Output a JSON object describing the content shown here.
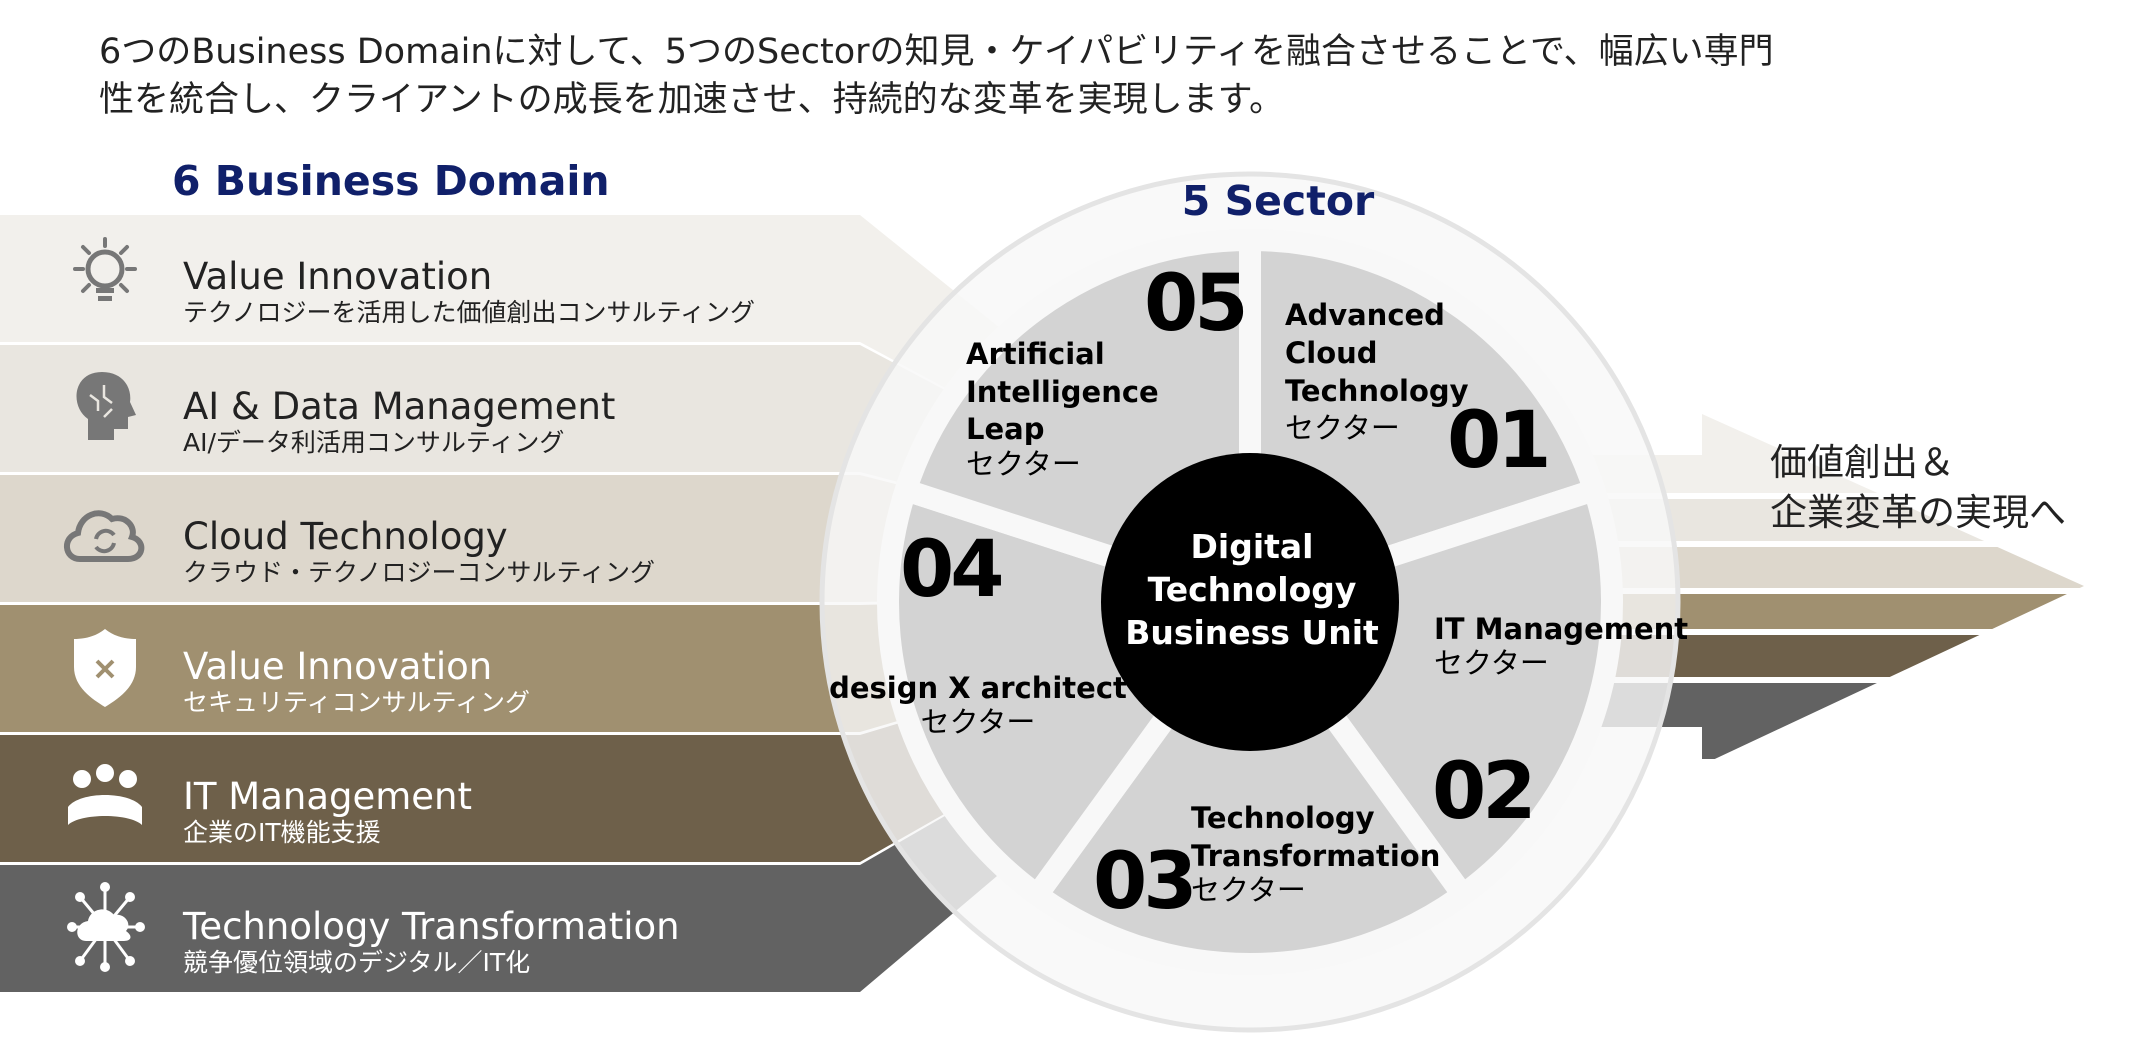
{
  "header": {
    "line1": "6つのBusiness Domainに対して、5つのSectorの知見・ケイパビリティを融合させることで、幅広い専門",
    "line2": "性を統合し、クライアントの成長を加速させ、持続的な変革を実現します。"
  },
  "domains": {
    "title": "6 Business Domain",
    "items": [
      {
        "title": "Value Innovation",
        "subtitle": "テクノロジーを活用した価値創出コンサルティング",
        "icon": "lightbulb-icon",
        "color": "#f2f0ec"
      },
      {
        "title": "AI & Data Management",
        "subtitle": "AI/データ利活用コンサルティング",
        "icon": "ai-head-icon",
        "color": "#e9e6e0"
      },
      {
        "title": "Cloud Technology",
        "subtitle": "クラウド・テクノロジーコンサルティング",
        "icon": "cloud-sync-icon",
        "color": "#ddd7cc"
      },
      {
        "title": "Value Innovation",
        "subtitle": "セキュリティコンサルティング",
        "icon": "shield-icon",
        "color": "#a09070"
      },
      {
        "title": "IT Management",
        "subtitle": "企業のIT機能支援",
        "icon": "team-icon",
        "color": "#6e604a"
      },
      {
        "title": "Technology Transformation",
        "subtitle": "競争優位領域のデジタル／IT化",
        "icon": "cloud-network-icon",
        "color": "#626262"
      }
    ]
  },
  "sectors": {
    "title": "5 Sector",
    "center": {
      "line1": "Digital",
      "line2": "Technology",
      "line3": "Business Unit"
    },
    "items": [
      {
        "number": "01",
        "lines": [
          "Advanced",
          "Cloud",
          "Technology"
        ],
        "suffix": "セクター"
      },
      {
        "number": "02",
        "lines": [
          "IT Management"
        ],
        "suffix": "セクター"
      },
      {
        "number": "03",
        "lines": [
          "Technology",
          "Transformation"
        ],
        "suffix": "セクター"
      },
      {
        "number": "04",
        "lines": [
          "design X architect"
        ],
        "suffix": "セクター"
      },
      {
        "number": "05",
        "lines": [
          "Artificial",
          "Intelligence",
          "Leap"
        ],
        "suffix": "セクター"
      }
    ]
  },
  "outcome": {
    "line1": "価値創出＆",
    "line2": "企業変革の実現へ"
  },
  "colors": {
    "navy": "#10206a",
    "wedge": "#d3d3d3",
    "center": "#000000"
  }
}
